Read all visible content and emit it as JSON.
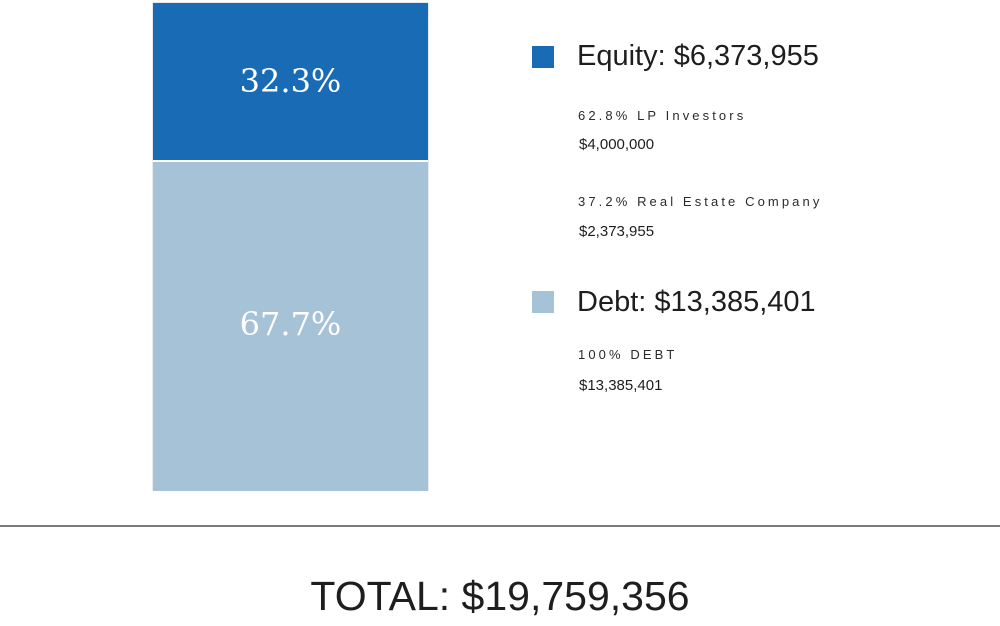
{
  "chart_data": {
    "type": "bar",
    "stacked": true,
    "categories": [
      ""
    ],
    "series": [
      {
        "name": "Equity",
        "values": [
          6373955
        ],
        "percent_label": "32.3%",
        "color": "#1a6bb5"
      },
      {
        "name": "Debt",
        "values": [
          13385401
        ],
        "percent_label": "67.7%",
        "color": "#a6c2d7"
      }
    ],
    "legend": [
      {
        "title": "Equity: $6,373,955",
        "color": "#1a6bb5",
        "items": [
          {
            "label": "62.8% LP Investors",
            "amount": "$4,000,000"
          },
          {
            "label": "37.2% Real Estate Company",
            "amount": "$2,373,955"
          }
        ]
      },
      {
        "title": "Debt: $13,385,401",
        "color": "#a6c2d7",
        "items": [
          {
            "label": "100% DEBT",
            "amount": "$13,385,401"
          }
        ]
      }
    ],
    "total_label": "TOTAL: $19,759,356",
    "grid": false,
    "legend_position": "right"
  }
}
